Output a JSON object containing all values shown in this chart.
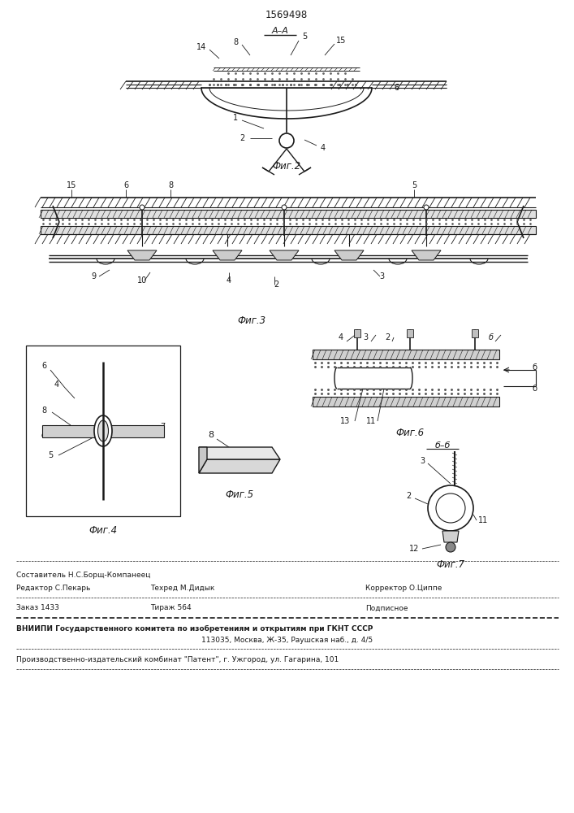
{
  "patent_number": "1569498",
  "bg_color": "#ffffff",
  "line_color": "#1a1a1a",
  "fig_width": 7.07,
  "fig_height": 10.0,
  "footer_line1": "Составитель Н.С.Борщ-Компанеец",
  "footer_editor": "Редактор С.Пекарь",
  "footer_techred": "Техред М.Дидык",
  "footer_corrector": "Корректор О.Циппе",
  "footer_order": "Заказ 1433",
  "footer_tirazh": "Тираж 564",
  "footer_podpisnoe": "Подписное",
  "footer_vniip": "ВНИИПИ Государственного комитета по изобретениям и открытиям при ГКНТ СССР",
  "footer_address": "113035, Москва, Ж-35, Раушская наб., д. 4/5",
  "footer_publisher": "Производственно-издательский комбинат \"Патент\", г. Ужгород, ул. Гагарина, 101"
}
